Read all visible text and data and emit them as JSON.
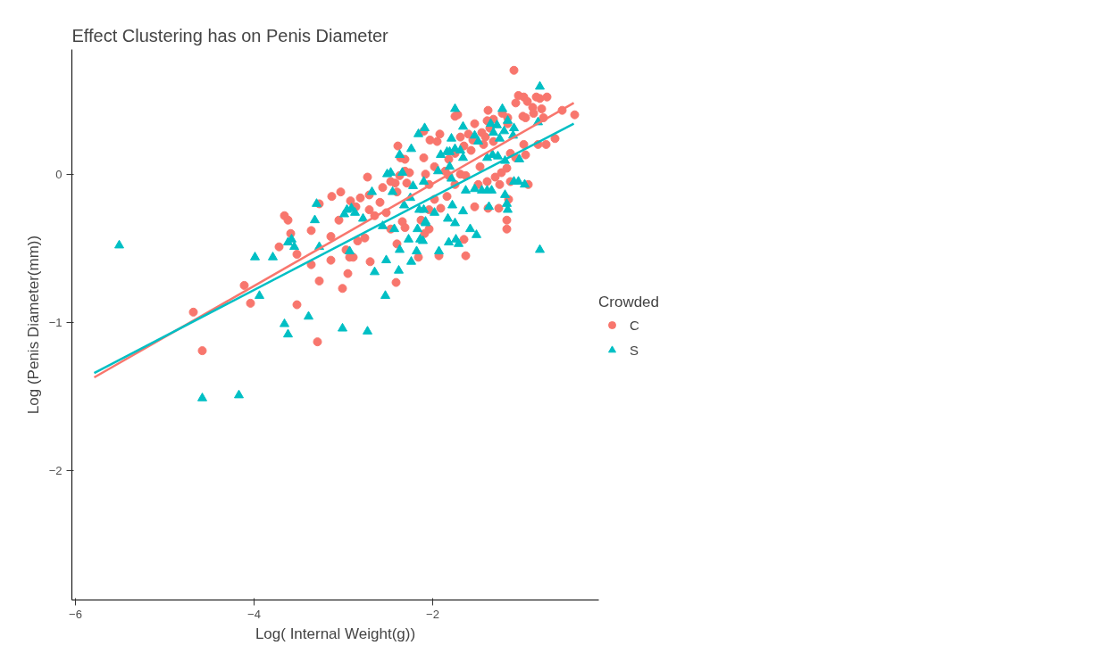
{
  "chart_data": {
    "type": "scatter",
    "title": "Effect Clustering has on Penis Diameter",
    "xlabel": "Log( Internal Weight(g))",
    "ylabel": "Log (Penis Diameter(mm))",
    "legend_title": "Crowded",
    "legend": "right",
    "grid": false,
    "xlim": [
      -6.04,
      -0.14
    ],
    "ylim": [
      -2.87,
      0.84
    ],
    "xticks": [
      -6,
      -4,
      -2
    ],
    "yticks": [
      -2,
      -1,
      0
    ],
    "series": [
      {
        "name": "C",
        "color": "#f8766d",
        "marker": "circle",
        "x": [
          -4.68,
          -4.58,
          -4.11,
          -4.04,
          -3.72,
          -3.66,
          -3.62,
          -3.59,
          -3.52,
          -3.36,
          -3.36,
          -3.27,
          -3.27,
          -3.52,
          -3.29,
          -3.13,
          -3.03,
          -3.14,
          -3.14,
          -3.05,
          -3.01,
          -2.97,
          -2.93,
          -2.89,
          -2.95,
          -2.92,
          -2.81,
          -2.86,
          -2.84,
          -2.76,
          -2.73,
          -2.71,
          -2.7,
          -2.71,
          -2.65,
          -2.59,
          -2.56,
          -2.47,
          -2.42,
          -2.52,
          -2.47,
          -2.4,
          -2.41,
          -2.39,
          -2.36,
          -2.31,
          -2.31,
          -2.26,
          -2.37,
          -2.29,
          -2.4,
          -2.34,
          -2.31,
          -2.13,
          -2.16,
          -2.09,
          -2.1,
          -2.08,
          -1.09,
          -1.04,
          -1.07,
          -0.98,
          -0.94,
          -0.99,
          -0.96,
          -0.88,
          -0.87,
          -0.84,
          -0.8,
          -0.72,
          -0.78,
          -0.76,
          -0.55,
          -0.41,
          -0.63,
          -0.73,
          -0.82,
          -0.96,
          -0.98,
          -0.93,
          -1.07,
          -1.13,
          -1.17,
          -1.15,
          -1.17,
          -1.17,
          -1.26,
          -1.38,
          -1.25,
          -1.13,
          -1.23,
          -1.3,
          -1.39,
          -1.49,
          -1.53,
          -1.47,
          -1.43,
          -1.41,
          -1.45,
          -1.39,
          -1.38,
          -1.32,
          -1.36,
          -1.32,
          -1.22,
          -1.16,
          -1.16,
          -1.53,
          -1.6,
          -1.55,
          -1.65,
          -1.57,
          -1.69,
          -1.75,
          -1.72,
          -1.75,
          -1.82,
          -1.92,
          -1.95,
          -2.03,
          -2.1,
          -1.98,
          -1.86,
          -1.69,
          -1.63,
          -1.75,
          -1.82,
          -2.04,
          -1.84,
          -1.91,
          -1.98,
          -2.04,
          -2.04,
          -1.65,
          -1.93,
          -1.63
        ],
        "values": [
          -0.93,
          -1.19,
          -0.75,
          -0.87,
          -0.49,
          -0.28,
          -0.31,
          -0.4,
          -0.54,
          -0.38,
          -0.61,
          -0.2,
          -0.72,
          -0.88,
          -1.13,
          -0.15,
          -0.12,
          -0.42,
          -0.58,
          -0.31,
          -0.77,
          -0.51,
          -0.56,
          -0.56,
          -0.67,
          -0.18,
          -0.16,
          -0.22,
          -0.45,
          -0.43,
          -0.02,
          -0.14,
          -0.59,
          -0.24,
          -0.28,
          -0.19,
          -0.09,
          -0.05,
          -0.06,
          -0.26,
          -0.37,
          -0.47,
          -0.73,
          0.19,
          0.11,
          0.1,
          0.02,
          0.01,
          -0.01,
          -0.06,
          -0.12,
          -0.32,
          -0.36,
          -0.31,
          -0.56,
          -0.4,
          0.11,
          0.0,
          0.7,
          0.53,
          0.48,
          0.52,
          0.49,
          0.39,
          0.38,
          0.45,
          0.41,
          0.52,
          0.51,
          0.52,
          0.44,
          0.38,
          0.43,
          0.4,
          0.24,
          0.2,
          0.2,
          0.13,
          0.2,
          -0.07,
          0.11,
          0.14,
          0.04,
          -0.17,
          -0.31,
          -0.37,
          -0.23,
          -0.23,
          -0.07,
          -0.05,
          0.01,
          -0.02,
          -0.05,
          -0.07,
          -0.22,
          0.05,
          0.2,
          0.25,
          0.28,
          0.36,
          0.43,
          0.37,
          0.31,
          0.22,
          0.41,
          0.38,
          0.34,
          0.34,
          0.27,
          0.23,
          0.19,
          0.16,
          0.25,
          0.39,
          0.4,
          0.14,
          0.1,
          0.27,
          0.22,
          0.23,
          0.29,
          0.05,
          0.02,
          0.0,
          -0.01,
          -0.07,
          -0.01,
          -0.07,
          -0.15,
          -0.23,
          -0.17,
          -0.24,
          -0.37,
          -0.44,
          -0.55,
          -0.55
        ]
      },
      {
        "name": "S",
        "color": "#00bfc4",
        "marker": "triangle",
        "x": [
          -5.51,
          -4.58,
          -4.17,
          -3.99,
          -3.79,
          -3.94,
          -3.62,
          -3.55,
          -3.58,
          -3.32,
          -3.3,
          -3.66,
          -3.62,
          -3.39,
          -3.01,
          -2.73,
          -2.93,
          -3.27,
          -2.99,
          -2.96,
          -2.91,
          -2.87,
          -2.78,
          -2.68,
          -2.65,
          -2.53,
          -2.52,
          -2.38,
          -2.37,
          -2.43,
          -2.56,
          -2.51,
          -2.47,
          -2.45,
          -2.37,
          -2.24,
          -2.34,
          -2.22,
          -2.25,
          -2.32,
          -2.24,
          -2.27,
          -2.15,
          -2.17,
          -2.14,
          -2.18,
          -2.1,
          -2.08,
          -2.1,
          -2.16,
          -1.75,
          -2.09,
          -1.66,
          -1.79,
          -1.91,
          -1.84,
          -1.81,
          -1.75,
          -1.69,
          -1.66,
          -1.49,
          -1.53,
          -1.35,
          -1.28,
          -1.32,
          -1.25,
          -1.2,
          -1.22,
          -1.09,
          -1.1,
          -1.16,
          -0.8,
          -0.82,
          -1.03,
          -1.33,
          -1.27,
          -1.19,
          -1.39,
          -1.94,
          -1.81,
          -1.79,
          -1.63,
          -1.53,
          -1.45,
          -1.39,
          -1.34,
          -1.19,
          -1.17,
          -1.16,
          -1.09,
          -1.04,
          -0.97,
          -1.78,
          -1.66,
          -1.98,
          -1.83,
          -1.75,
          -2.08,
          -1.58,
          -1.51,
          -1.82,
          -1.74,
          -1.71,
          -1.93,
          -0.8,
          -1.37,
          -2.11
        ],
        "values": [
          -0.48,
          -1.51,
          -1.49,
          -0.56,
          -0.56,
          -0.82,
          -0.46,
          -0.49,
          -0.44,
          -0.31,
          -0.2,
          -1.01,
          -1.08,
          -0.96,
          -1.04,
          -1.06,
          -0.52,
          -0.49,
          -0.27,
          -0.24,
          -0.23,
          -0.26,
          -0.3,
          -0.12,
          -0.66,
          -0.82,
          -0.58,
          -0.65,
          -0.51,
          -0.37,
          -0.35,
          0.0,
          0.01,
          -0.12,
          0.13,
          0.17,
          0.01,
          -0.08,
          -0.16,
          -0.21,
          -0.59,
          -0.44,
          -0.24,
          -0.37,
          -0.44,
          -0.52,
          -0.05,
          -0.33,
          -0.24,
          0.27,
          0.44,
          0.31,
          0.32,
          0.24,
          0.13,
          0.15,
          0.15,
          0.17,
          0.16,
          0.11,
          0.22,
          0.26,
          0.34,
          0.33,
          0.28,
          0.24,
          0.29,
          0.44,
          0.31,
          0.26,
          0.36,
          0.59,
          0.35,
          0.1,
          0.13,
          0.12,
          0.09,
          0.11,
          0.02,
          0.05,
          -0.03,
          -0.11,
          -0.1,
          -0.11,
          -0.11,
          -0.11,
          -0.14,
          -0.2,
          -0.24,
          -0.05,
          -0.05,
          -0.07,
          -0.21,
          -0.25,
          -0.26,
          -0.3,
          -0.33,
          -0.32,
          -0.37,
          -0.41,
          -0.46,
          -0.44,
          -0.47,
          -0.52,
          -0.51,
          -0.22,
          -0.45
        ]
      },
      {
        "type": "line",
        "color": "#f8766d",
        "x": [
          -5.79,
          -0.42
        ],
        "values": [
          -1.37,
          0.48
        ]
      },
      {
        "type": "line",
        "color": "#00bfc4",
        "x": [
          -5.79,
          -0.42
        ],
        "values": [
          -1.34,
          0.34
        ]
      }
    ]
  }
}
